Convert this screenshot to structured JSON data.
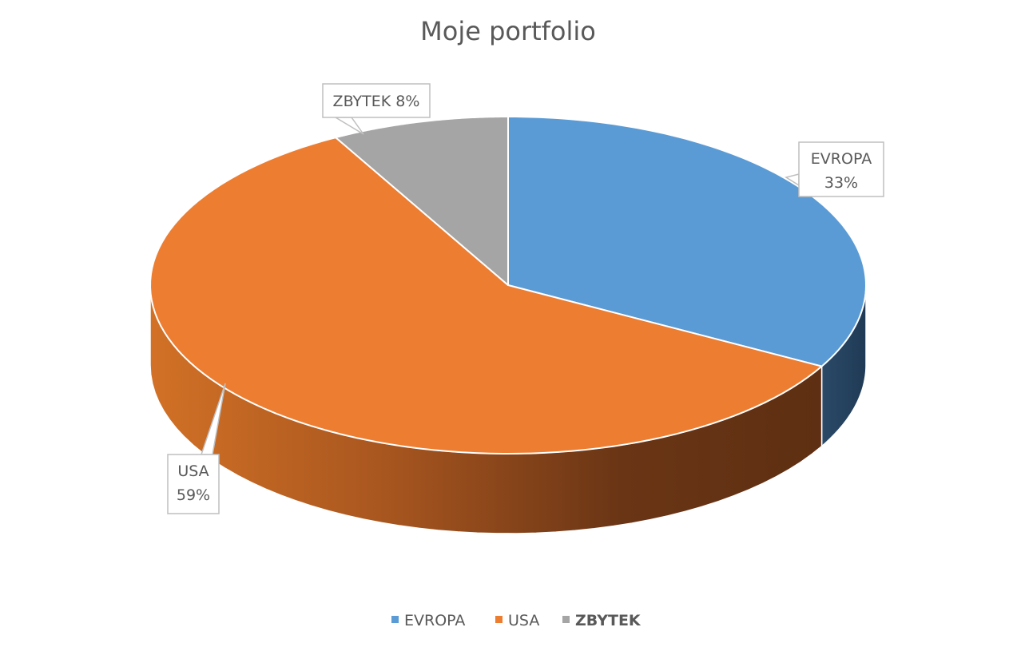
{
  "chart_data": {
    "type": "pie",
    "title": "Moje portfolio",
    "categories": [
      "EVROPA",
      "USA",
      "ZBYTEK"
    ],
    "values": [
      33,
      59,
      8
    ],
    "data_labels": [
      {
        "name": "EVROPA",
        "value": "33%"
      },
      {
        "name": "USA",
        "value": "59%"
      },
      {
        "name": "ZBYTEK",
        "value": "8%"
      }
    ],
    "colors": [
      "#5B9BD5",
      "#ED7D31",
      "#A5A5A5"
    ],
    "side_colors_dark": [
      "#1F3A55",
      "#5E2F12",
      "#4A4A4A"
    ],
    "legend": {
      "placement": "bottom",
      "items": [
        {
          "label": "EVROPA",
          "color": "#5B9BD5"
        },
        {
          "label": "USA",
          "color": "#ED7D31"
        },
        {
          "label": "ZBYTEK",
          "color": "#A5A5A5"
        }
      ]
    }
  }
}
